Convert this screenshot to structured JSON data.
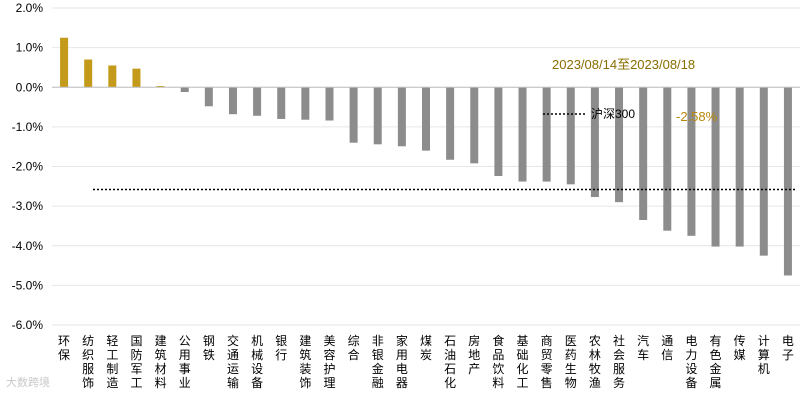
{
  "chart_data": {
    "type": "bar",
    "categories": [
      "环保",
      "纺织服饰",
      "轻工制造",
      "国防军工",
      "建筑材料",
      "公用事业",
      "钢铁",
      "交通运输",
      "机械设备",
      "银行",
      "建筑装饰",
      "美容护理",
      "综合",
      "非银金融",
      "家用电器",
      "煤炭",
      "石油石化",
      "房地产",
      "食品饮料",
      "基础化工",
      "商贸零售",
      "医药生物",
      "农林牧渔",
      "社会服务",
      "汽车",
      "通信",
      "电力设备",
      "有色金属",
      "传媒",
      "计算机",
      "电子"
    ],
    "values": [
      1.25,
      0.7,
      0.55,
      0.47,
      0.03,
      -0.12,
      -0.48,
      -0.68,
      -0.72,
      -0.8,
      -0.82,
      -0.84,
      -1.4,
      -1.44,
      -1.49,
      -1.6,
      -1.83,
      -1.92,
      -2.24,
      -2.38,
      -2.38,
      -2.45,
      -2.77,
      -2.9,
      -3.35,
      -3.62,
      -3.75,
      -4.02,
      -4.02,
      -4.25,
      -4.75
    ],
    "ylim": [
      -6.0,
      2.0
    ],
    "yticks": [
      2.0,
      1.0,
      0.0,
      -1.0,
      -2.0,
      -3.0,
      -4.0,
      -5.0,
      -6.0
    ],
    "ytick_labels": [
      "2.0%",
      "1.0%",
      "0.0%",
      "-1.0%",
      "-2.0%",
      "-3.0%",
      "-4.0%",
      "-5.0%",
      "-6.0%"
    ],
    "positive_color": "#c49a1a",
    "negative_color": "#8c8c8c",
    "grid": true,
    "reference_line": {
      "name": "沪深300",
      "value": -2.58,
      "label": "-2.58%",
      "style": "dotted"
    },
    "annotation": "2023/08/14至2023/08/18"
  },
  "watermark": "大数跨境"
}
